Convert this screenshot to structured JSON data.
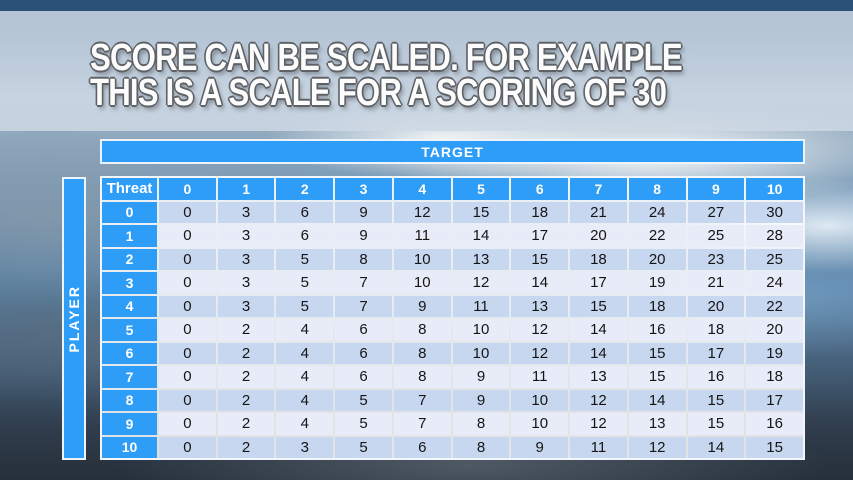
{
  "slide": {
    "title_line1": "SCORE CAN BE SCALED. FOR EXAMPLE",
    "title_line2": "THIS IS A SCALE FOR A SCORING OF 30"
  },
  "table": {
    "target_label": "TARGET",
    "player_label": "PLAYER",
    "corner_label": "Threat",
    "column_headers": [
      "0",
      "1",
      "2",
      "3",
      "4",
      "5",
      "6",
      "7",
      "8",
      "9",
      "10"
    ],
    "rows": [
      {
        "label": "0",
        "values": [
          0,
          3,
          6,
          9,
          12,
          15,
          18,
          21,
          24,
          27,
          30
        ]
      },
      {
        "label": "1",
        "values": [
          0,
          3,
          6,
          9,
          11,
          14,
          17,
          20,
          22,
          25,
          28
        ]
      },
      {
        "label": "2",
        "values": [
          0,
          3,
          5,
          8,
          10,
          13,
          15,
          18,
          20,
          23,
          25
        ]
      },
      {
        "label": "3",
        "values": [
          0,
          3,
          5,
          7,
          10,
          12,
          14,
          17,
          19,
          21,
          24
        ]
      },
      {
        "label": "4",
        "values": [
          0,
          3,
          5,
          7,
          9,
          11,
          13,
          15,
          18,
          20,
          22
        ]
      },
      {
        "label": "5",
        "values": [
          0,
          2,
          4,
          6,
          8,
          10,
          12,
          14,
          16,
          18,
          20
        ]
      },
      {
        "label": "6",
        "values": [
          0,
          2,
          4,
          6,
          8,
          10,
          12,
          14,
          15,
          17,
          19
        ]
      },
      {
        "label": "7",
        "values": [
          0,
          2,
          4,
          6,
          8,
          9,
          11,
          13,
          15,
          16,
          18
        ]
      },
      {
        "label": "8",
        "values": [
          0,
          2,
          4,
          5,
          7,
          9,
          10,
          12,
          14,
          15,
          17
        ]
      },
      {
        "label": "9",
        "values": [
          0,
          2,
          4,
          5,
          7,
          8,
          10,
          12,
          13,
          15,
          16
        ]
      },
      {
        "label": "10",
        "values": [
          0,
          2,
          3,
          5,
          6,
          8,
          9,
          11,
          12,
          14,
          15
        ]
      }
    ]
  },
  "colors": {
    "header_blue": "#2E9DF7",
    "row_even": "#C8D7F0",
    "row_odd": "#E8ECF9",
    "cell_text": "#151515",
    "sky_dark_top": "#2B5176",
    "title_band": "#CED9E5",
    "title_outline": "#5E6266"
  }
}
